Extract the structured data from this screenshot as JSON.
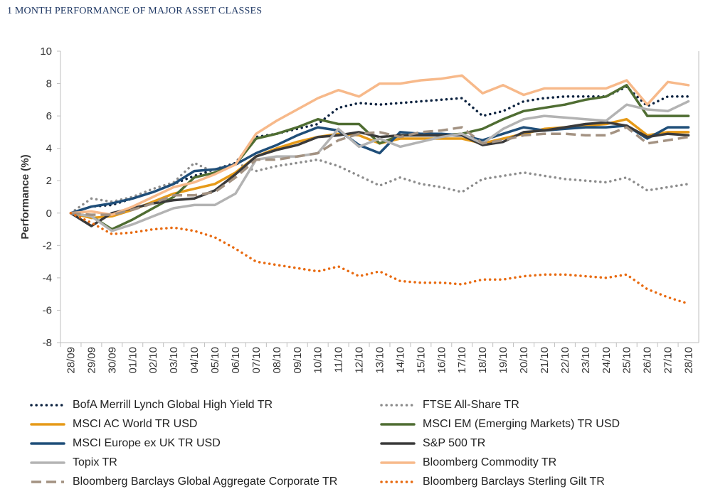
{
  "title": "1 MONTH PERFORMANCE OF MAJOR ASSET CLASSES",
  "chart_data": {
    "type": "line",
    "ylabel": "Performance (%)",
    "xlabel": "",
    "ylim": [
      -8,
      10
    ],
    "yticks": [
      "10",
      "8",
      "6",
      "4",
      "2",
      "0",
      "-2",
      "-4",
      "-6",
      "-8"
    ],
    "ytick_values": [
      10,
      8,
      6,
      4,
      2,
      0,
      -2,
      -4,
      -6,
      -8
    ],
    "grid": false,
    "legend_position": "bottom",
    "categories": [
      "28/09",
      "29/09",
      "30/09",
      "01/10",
      "02/10",
      "03/10",
      "04/10",
      "05/10",
      "06/10",
      "07/10",
      "08/10",
      "09/10",
      "10/10",
      "11/10",
      "12/10",
      "13/10",
      "14/10",
      "15/10",
      "16/10",
      "17/10",
      "18/10",
      "19/10",
      "20/10",
      "21/10",
      "22/10",
      "23/10",
      "24/10",
      "25/10",
      "26/10",
      "27/10",
      "28/10"
    ],
    "series": [
      {
        "name": "BofA Merrill Lynch Global High Yield TR",
        "color": "#0d2340",
        "style": "dotted",
        "values": [
          0,
          0.4,
          0.5,
          0.9,
          1.3,
          1.8,
          2.3,
          2.7,
          3.1,
          4.7,
          4.9,
          5.2,
          5.5,
          6.5,
          6.8,
          6.7,
          6.8,
          6.9,
          7.0,
          7.1,
          6.0,
          6.3,
          6.9,
          7.1,
          7.2,
          7.2,
          7.2,
          7.8,
          6.6,
          7.2,
          7.2
        ]
      },
      {
        "name": "FTSE All-Share TR",
        "color": "#8c8c8c",
        "style": "dotted",
        "values": [
          0,
          0.9,
          0.7,
          1.0,
          1.5,
          1.9,
          3.1,
          2.5,
          3.1,
          2.6,
          2.9,
          3.1,
          3.3,
          2.9,
          2.3,
          1.7,
          2.2,
          1.8,
          1.6,
          1.3,
          2.1,
          2.3,
          2.5,
          2.3,
          2.1,
          2.0,
          1.9,
          2.2,
          1.4,
          1.6,
          1.8
        ]
      },
      {
        "name": "MSCI AC World TR USD",
        "color": "#e69a18",
        "style": "solid",
        "values": [
          0,
          -0.3,
          -0.2,
          0.2,
          0.7,
          1.2,
          1.5,
          1.8,
          2.5,
          3.5,
          4.0,
          4.4,
          4.7,
          4.9,
          4.8,
          4.3,
          4.6,
          4.6,
          4.6,
          4.6,
          4.3,
          4.6,
          4.9,
          5.2,
          5.3,
          5.4,
          5.5,
          5.8,
          4.8,
          5.0,
          5.0
        ]
      },
      {
        "name": "MSCI EM (Emerging Markets) TR USD",
        "color": "#4f6d32",
        "style": "solid",
        "values": [
          0,
          -0.2,
          -1.0,
          -0.4,
          0.3,
          1.0,
          2.2,
          2.5,
          3.0,
          4.6,
          4.9,
          5.3,
          5.8,
          5.5,
          5.5,
          4.3,
          4.8,
          4.8,
          4.8,
          4.9,
          5.2,
          5.8,
          6.3,
          6.5,
          6.7,
          7.0,
          7.2,
          7.9,
          6.0,
          6.0,
          6.0
        ]
      },
      {
        "name": "MSCI Europe ex UK TR USD",
        "color": "#1f4e79",
        "style": "solid",
        "values": [
          0,
          0.4,
          0.6,
          0.9,
          1.3,
          1.8,
          2.6,
          2.7,
          3.0,
          3.7,
          4.2,
          4.8,
          5.3,
          5.1,
          4.2,
          3.7,
          5.0,
          4.9,
          4.9,
          4.8,
          4.5,
          4.9,
          5.3,
          5.1,
          5.2,
          5.3,
          5.3,
          5.4,
          4.6,
          5.3,
          5.3
        ]
      },
      {
        "name": "S&P 500 TR",
        "color": "#3a3a3a",
        "style": "solid",
        "values": [
          0,
          -0.8,
          0.0,
          0.3,
          0.6,
          0.8,
          0.9,
          1.4,
          2.4,
          3.5,
          3.9,
          4.2,
          4.7,
          4.8,
          5.0,
          4.7,
          4.8,
          4.8,
          4.8,
          4.8,
          4.2,
          4.4,
          5.0,
          5.1,
          5.3,
          5.5,
          5.6,
          5.4,
          4.7,
          4.9,
          4.8
        ]
      },
      {
        "name": "Topix TR",
        "color": "#b3b3b3",
        "style": "solid",
        "values": [
          0,
          -0.2,
          -1.1,
          -0.7,
          -0.2,
          0.3,
          0.5,
          0.5,
          1.2,
          3.3,
          3.5,
          3.5,
          3.7,
          5.2,
          4.1,
          4.6,
          4.1,
          4.4,
          4.7,
          4.9,
          4.3,
          5.2,
          5.8,
          6.0,
          5.9,
          5.8,
          5.7,
          6.7,
          6.4,
          6.3,
          6.9
        ]
      },
      {
        "name": "Bloomberg Commodity TR",
        "color": "#f7b98a",
        "style": "solid",
        "values": [
          0,
          0.1,
          -0.1,
          0.4,
          1.0,
          1.6,
          1.9,
          2.4,
          3.0,
          4.9,
          5.7,
          6.4,
          7.1,
          7.6,
          7.2,
          8.0,
          8.0,
          8.2,
          8.3,
          8.5,
          7.4,
          7.9,
          7.3,
          7.7,
          7.7,
          7.7,
          7.7,
          8.2,
          6.7,
          8.1,
          7.9
        ]
      },
      {
        "name": "Bloomberg Barclays Global Aggregate Corporate TR",
        "color": "#a39282",
        "style": "dashed",
        "values": [
          0,
          -0.1,
          -0.1,
          0.2,
          0.6,
          1.1,
          1.1,
          1.3,
          2.2,
          3.3,
          3.3,
          3.5,
          3.7,
          4.5,
          4.9,
          5.0,
          4.7,
          5.0,
          5.1,
          5.3,
          4.3,
          4.5,
          4.8,
          4.9,
          4.9,
          4.8,
          4.8,
          5.3,
          4.3,
          4.5,
          4.7
        ]
      },
      {
        "name": "Bloomberg Barclays Sterling Gilt TR",
        "color": "#e86a10",
        "style": "dotted",
        "values": [
          0,
          -0.6,
          -1.3,
          -1.2,
          -1.0,
          -0.9,
          -1.1,
          -1.5,
          -2.2,
          -3.0,
          -3.2,
          -3.4,
          -3.6,
          -3.3,
          -3.9,
          -3.6,
          -4.2,
          -4.3,
          -4.3,
          -4.4,
          -4.1,
          -4.1,
          -3.9,
          -3.8,
          -3.8,
          -3.9,
          -4.0,
          -3.8,
          -4.7,
          -5.2,
          -5.6
        ]
      }
    ]
  }
}
